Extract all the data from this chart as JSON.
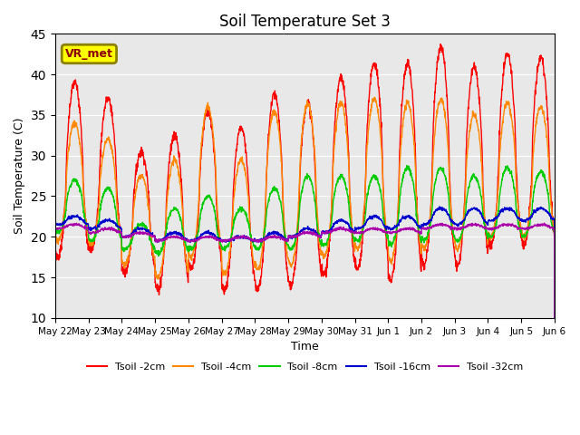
{
  "title": "Soil Temperature Set 3",
  "ylabel": "Soil Temperature (C)",
  "xlabel": "Time",
  "ylim": [
    10,
    45
  ],
  "bg_color": "#e8e8e8",
  "series_colors": {
    "Tsoil -2cm": "#ff0000",
    "Tsoil -4cm": "#ff8800",
    "Tsoil -8cm": "#00cc00",
    "Tsoil -16cm": "#0000cc",
    "Tsoil -32cm": "#aa00aa"
  },
  "xtick_labels": [
    "May 22",
    "May 23",
    "May 24",
    "May 25",
    "May 26",
    "May 27",
    "May 28",
    "May 29",
    "May 30",
    "May 31",
    "Jun 1",
    "Jun 2",
    "Jun 3",
    "Jun 4",
    "Jun 5",
    "Jun 6"
  ],
  "annotation_text": "VR_met"
}
